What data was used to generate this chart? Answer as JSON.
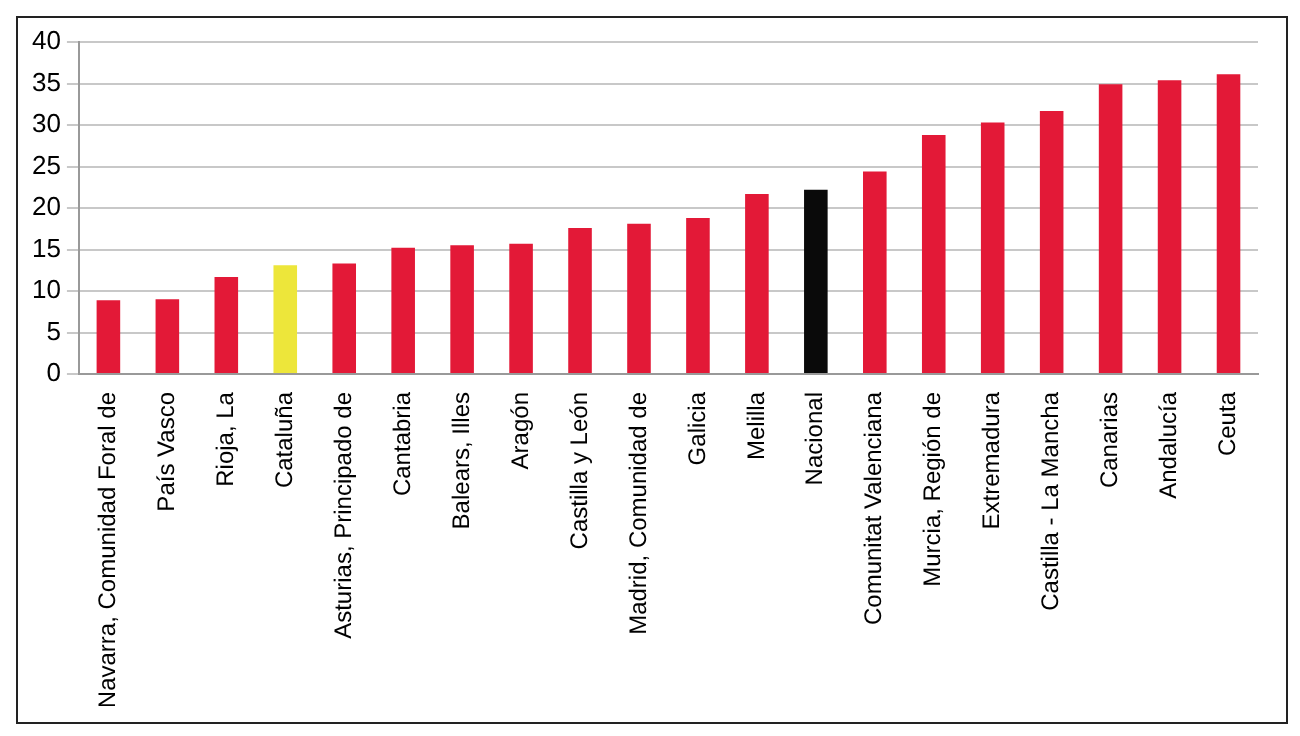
{
  "chart_data": {
    "type": "bar",
    "categories": [
      "Navarra, Comunidad Foral de",
      "País Vasco",
      "Rioja, La",
      "Cataluña",
      "Asturias, Principado de",
      "Cantabria",
      "Balears, Illes",
      "Aragón",
      "Castilla y León",
      "Madrid, Comunidad de",
      "Galicia",
      "Melilla",
      "Nacional",
      "Comunitat Valenciana",
      "Murcia, Región de",
      "Extremadura",
      "Castilla - La Mancha",
      "Canarias",
      "Andalucía",
      "Ceuta"
    ],
    "values": [
      8.9,
      9.0,
      11.7,
      13.1,
      13.3,
      15.2,
      15.5,
      15.7,
      17.6,
      18.1,
      18.8,
      21.7,
      22.2,
      24.4,
      28.8,
      30.3,
      31.7,
      34.9,
      35.4,
      36.1
    ],
    "colors": [
      "#e31937",
      "#e31937",
      "#e31937",
      "#ede63a",
      "#e31937",
      "#e31937",
      "#e31937",
      "#e31937",
      "#e31937",
      "#e31937",
      "#e31937",
      "#e31937",
      "#0a0a0a",
      "#e31937",
      "#e31937",
      "#e31937",
      "#e31937",
      "#e31937",
      "#e31937",
      "#e31937"
    ],
    "ylim": [
      0,
      40
    ],
    "yticks": [
      0,
      5,
      10,
      15,
      20,
      25,
      30,
      35,
      40
    ],
    "grid": "y",
    "legend": false
  }
}
